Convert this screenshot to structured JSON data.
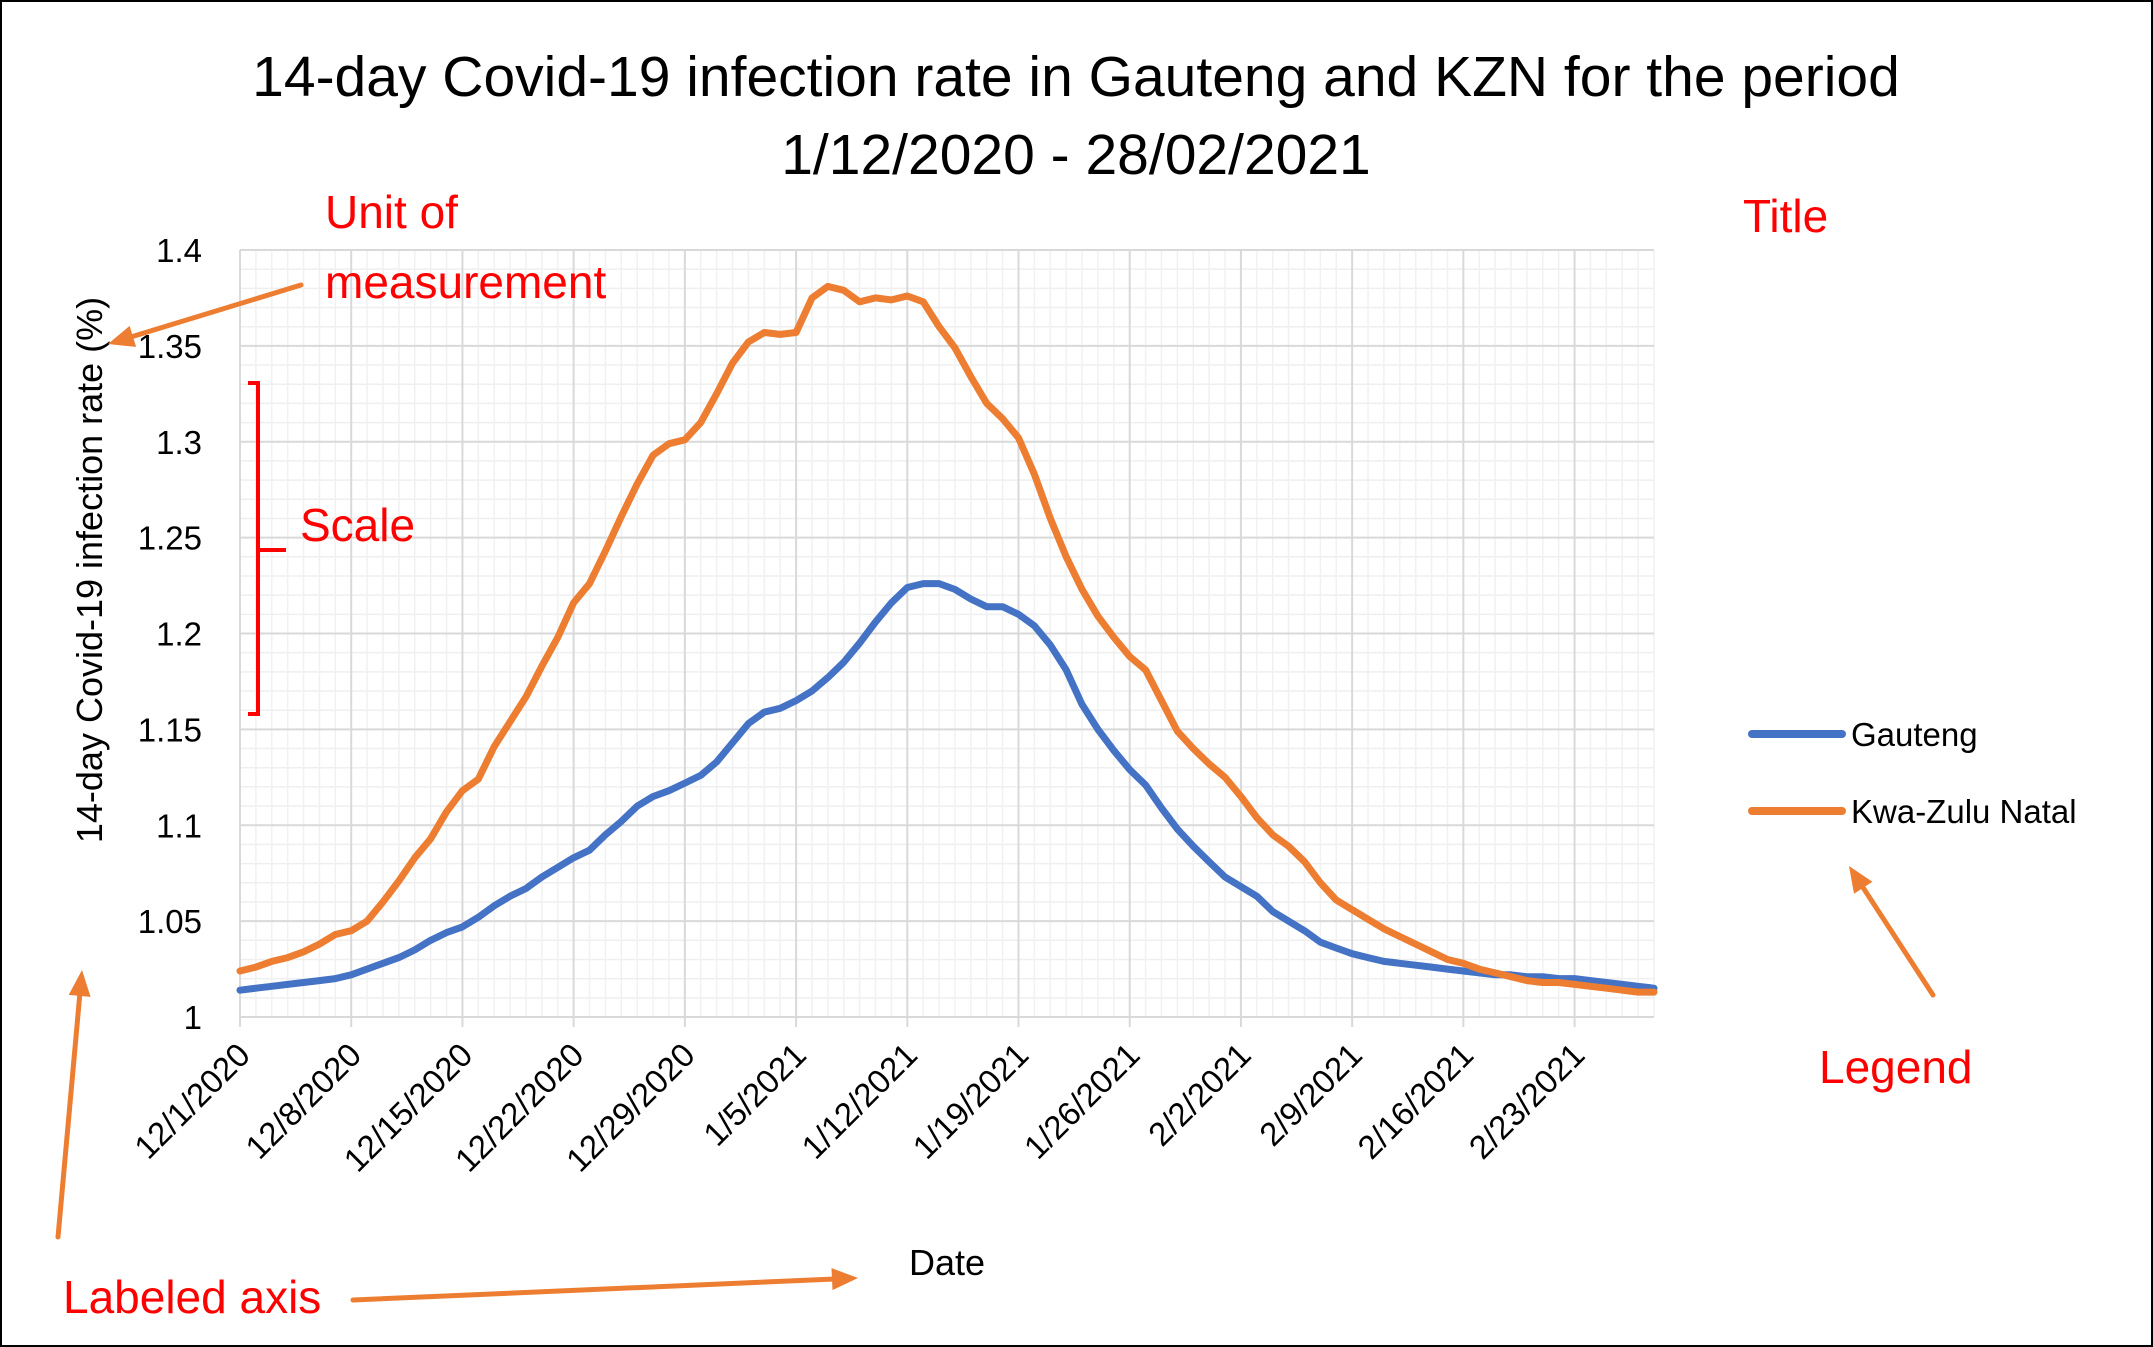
{
  "chart_data": {
    "type": "line",
    "title": "14-day Covid-19 infection rate in Gauteng and KZN for the period 1/12/2020 - 28/02/2021",
    "title_lines": [
      "14-day Covid-19 infection rate in Gauteng and KZN for the period",
      "1/12/2020 - 28/02/2021"
    ],
    "xlabel": "Date",
    "ylabel": "14-day Covid-19 infection rate (%)",
    "ylim": [
      1,
      1.4
    ],
    "yticks": [
      1,
      1.05,
      1.1,
      1.15,
      1.2,
      1.25,
      1.3,
      1.35,
      1.4
    ],
    "ytick_labels": [
      "1",
      "1.05",
      "1.1",
      "1.15",
      "1.2",
      "1.25",
      "1.3",
      "1.35",
      "1.4"
    ],
    "x_start": "2020-12-01",
    "x_end": "2021-02-28",
    "xtick_labels": [
      "12/1/2020",
      "12/8/2020",
      "12/15/2020",
      "12/22/2020",
      "12/29/2020",
      "1/5/2021",
      "1/12/2021",
      "1/19/2021",
      "1/26/2021",
      "2/2/2021",
      "2/9/2021",
      "2/16/2021",
      "2/23/2021"
    ],
    "grid": true,
    "legend_position": "right",
    "series": [
      {
        "name": "Gauteng",
        "color": "#4472C4",
        "points": [
          [
            "2020-12-01",
            1.014
          ],
          [
            "2020-12-02",
            1.015
          ],
          [
            "2020-12-03",
            1.016
          ],
          [
            "2020-12-04",
            1.017
          ],
          [
            "2020-12-05",
            1.018
          ],
          [
            "2020-12-06",
            1.019
          ],
          [
            "2020-12-07",
            1.02
          ],
          [
            "2020-12-08",
            1.022
          ],
          [
            "2020-12-09",
            1.025
          ],
          [
            "2020-12-10",
            1.028
          ],
          [
            "2020-12-11",
            1.031
          ],
          [
            "2020-12-12",
            1.035
          ],
          [
            "2020-12-13",
            1.04
          ],
          [
            "2020-12-14",
            1.044
          ],
          [
            "2020-12-15",
            1.047
          ],
          [
            "2020-12-16",
            1.052
          ],
          [
            "2020-12-17",
            1.058
          ],
          [
            "2020-12-18",
            1.063
          ],
          [
            "2020-12-19",
            1.067
          ],
          [
            "2020-12-20",
            1.073
          ],
          [
            "2020-12-21",
            1.078
          ],
          [
            "2020-12-22",
            1.083
          ],
          [
            "2020-12-23",
            1.087
          ],
          [
            "2020-12-24",
            1.095
          ],
          [
            "2020-12-25",
            1.102
          ],
          [
            "2020-12-26",
            1.11
          ],
          [
            "2020-12-27",
            1.115
          ],
          [
            "2020-12-28",
            1.118
          ],
          [
            "2020-12-29",
            1.122
          ],
          [
            "2020-12-30",
            1.126
          ],
          [
            "2020-12-31",
            1.133
          ],
          [
            "2021-01-01",
            1.143
          ],
          [
            "2021-01-02",
            1.153
          ],
          [
            "2021-01-03",
            1.159
          ],
          [
            "2021-01-04",
            1.161
          ],
          [
            "2021-01-05",
            1.165
          ],
          [
            "2021-01-06",
            1.17
          ],
          [
            "2021-01-07",
            1.177
          ],
          [
            "2021-01-08",
            1.185
          ],
          [
            "2021-01-09",
            1.195
          ],
          [
            "2021-01-10",
            1.206
          ],
          [
            "2021-01-11",
            1.216
          ],
          [
            "2021-01-12",
            1.224
          ],
          [
            "2021-01-13",
            1.226
          ],
          [
            "2021-01-14",
            1.226
          ],
          [
            "2021-01-15",
            1.223
          ],
          [
            "2021-01-16",
            1.218
          ],
          [
            "2021-01-17",
            1.214
          ],
          [
            "2021-01-18",
            1.214
          ],
          [
            "2021-01-19",
            1.21
          ],
          [
            "2021-01-20",
            1.204
          ],
          [
            "2021-01-21",
            1.194
          ],
          [
            "2021-01-22",
            1.181
          ],
          [
            "2021-01-23",
            1.163
          ],
          [
            "2021-01-24",
            1.15
          ],
          [
            "2021-01-25",
            1.139
          ],
          [
            "2021-01-26",
            1.129
          ],
          [
            "2021-01-27",
            1.121
          ],
          [
            "2021-01-28",
            1.109
          ],
          [
            "2021-01-29",
            1.098
          ],
          [
            "2021-01-30",
            1.089
          ],
          [
            "2021-01-31",
            1.081
          ],
          [
            "2021-02-01",
            1.073
          ],
          [
            "2021-02-02",
            1.068
          ],
          [
            "2021-02-03",
            1.063
          ],
          [
            "2021-02-04",
            1.055
          ],
          [
            "2021-02-05",
            1.05
          ],
          [
            "2021-02-06",
            1.045
          ],
          [
            "2021-02-07",
            1.039
          ],
          [
            "2021-02-08",
            1.036
          ],
          [
            "2021-02-09",
            1.033
          ],
          [
            "2021-02-10",
            1.031
          ],
          [
            "2021-02-11",
            1.029
          ],
          [
            "2021-02-12",
            1.028
          ],
          [
            "2021-02-13",
            1.027
          ],
          [
            "2021-02-14",
            1.026
          ],
          [
            "2021-02-15",
            1.025
          ],
          [
            "2021-02-16",
            1.024
          ],
          [
            "2021-02-17",
            1.023
          ],
          [
            "2021-02-18",
            1.022
          ],
          [
            "2021-02-19",
            1.022
          ],
          [
            "2021-02-20",
            1.021
          ],
          [
            "2021-02-21",
            1.021
          ],
          [
            "2021-02-22",
            1.02
          ],
          [
            "2021-02-23",
            1.02
          ],
          [
            "2021-02-24",
            1.019
          ],
          [
            "2021-02-25",
            1.018
          ],
          [
            "2021-02-26",
            1.017
          ],
          [
            "2021-02-27",
            1.016
          ],
          [
            "2021-02-28",
            1.015
          ]
        ]
      },
      {
        "name": "Kwa-Zulu Natal",
        "color": "#ED7D31",
        "points": [
          [
            "2020-12-01",
            1.024
          ],
          [
            "2020-12-02",
            1.026
          ],
          [
            "2020-12-03",
            1.029
          ],
          [
            "2020-12-04",
            1.031
          ],
          [
            "2020-12-05",
            1.034
          ],
          [
            "2020-12-06",
            1.038
          ],
          [
            "2020-12-07",
            1.043
          ],
          [
            "2020-12-08",
            1.045
          ],
          [
            "2020-12-09",
            1.05
          ],
          [
            "2020-12-10",
            1.06
          ],
          [
            "2020-12-11",
            1.071
          ],
          [
            "2020-12-12",
            1.083
          ],
          [
            "2020-12-13",
            1.093
          ],
          [
            "2020-12-14",
            1.107
          ],
          [
            "2020-12-15",
            1.118
          ],
          [
            "2020-12-16",
            1.124
          ],
          [
            "2020-12-17",
            1.141
          ],
          [
            "2020-12-18",
            1.154
          ],
          [
            "2020-12-19",
            1.167
          ],
          [
            "2020-12-20",
            1.183
          ],
          [
            "2020-12-21",
            1.198
          ],
          [
            "2020-12-22",
            1.216
          ],
          [
            "2020-12-23",
            1.226
          ],
          [
            "2020-12-24",
            1.243
          ],
          [
            "2020-12-25",
            1.261
          ],
          [
            "2020-12-26",
            1.278
          ],
          [
            "2020-12-27",
            1.293
          ],
          [
            "2020-12-28",
            1.299
          ],
          [
            "2020-12-29",
            1.301
          ],
          [
            "2020-12-30",
            1.31
          ],
          [
            "2020-12-31",
            1.325
          ],
          [
            "2021-01-01",
            1.341
          ],
          [
            "2021-01-02",
            1.352
          ],
          [
            "2021-01-03",
            1.357
          ],
          [
            "2021-01-04",
            1.356
          ],
          [
            "2021-01-05",
            1.357
          ],
          [
            "2021-01-06",
            1.375
          ],
          [
            "2021-01-07",
            1.381
          ],
          [
            "2021-01-08",
            1.379
          ],
          [
            "2021-01-09",
            1.373
          ],
          [
            "2021-01-10",
            1.375
          ],
          [
            "2021-01-11",
            1.374
          ],
          [
            "2021-01-12",
            1.376
          ],
          [
            "2021-01-13",
            1.373
          ],
          [
            "2021-01-14",
            1.36
          ],
          [
            "2021-01-15",
            1.349
          ],
          [
            "2021-01-16",
            1.334
          ],
          [
            "2021-01-17",
            1.32
          ],
          [
            "2021-01-18",
            1.312
          ],
          [
            "2021-01-19",
            1.302
          ],
          [
            "2021-01-20",
            1.283
          ],
          [
            "2021-01-21",
            1.26
          ],
          [
            "2021-01-22",
            1.24
          ],
          [
            "2021-01-23",
            1.223
          ],
          [
            "2021-01-24",
            1.209
          ],
          [
            "2021-01-25",
            1.198
          ],
          [
            "2021-01-26",
            1.188
          ],
          [
            "2021-01-27",
            1.181
          ],
          [
            "2021-01-28",
            1.165
          ],
          [
            "2021-01-29",
            1.149
          ],
          [
            "2021-01-30",
            1.14
          ],
          [
            "2021-01-31",
            1.132
          ],
          [
            "2021-02-01",
            1.125
          ],
          [
            "2021-02-02",
            1.115
          ],
          [
            "2021-02-03",
            1.104
          ],
          [
            "2021-02-04",
            1.095
          ],
          [
            "2021-02-05",
            1.089
          ],
          [
            "2021-02-06",
            1.081
          ],
          [
            "2021-02-07",
            1.07
          ],
          [
            "2021-02-08",
            1.061
          ],
          [
            "2021-02-09",
            1.056
          ],
          [
            "2021-02-10",
            1.051
          ],
          [
            "2021-02-11",
            1.046
          ],
          [
            "2021-02-12",
            1.042
          ],
          [
            "2021-02-13",
            1.038
          ],
          [
            "2021-02-14",
            1.034
          ],
          [
            "2021-02-15",
            1.03
          ],
          [
            "2021-02-16",
            1.028
          ],
          [
            "2021-02-17",
            1.025
          ],
          [
            "2021-02-18",
            1.023
          ],
          [
            "2021-02-19",
            1.021
          ],
          [
            "2021-02-20",
            1.019
          ],
          [
            "2021-02-21",
            1.018
          ],
          [
            "2021-02-22",
            1.018
          ],
          [
            "2021-02-23",
            1.017
          ],
          [
            "2021-02-24",
            1.016
          ],
          [
            "2021-02-25",
            1.015
          ],
          [
            "2021-02-26",
            1.014
          ],
          [
            "2021-02-27",
            1.013
          ],
          [
            "2021-02-28",
            1.013
          ]
        ]
      }
    ]
  },
  "annotations": {
    "text_color": "#FF0000",
    "arrow_color": "#ED7D31",
    "bracket_color": "#FF0000",
    "unit_of_measurement_lines": [
      "Unit of",
      "measurement"
    ],
    "title": "Title",
    "scale": "Scale",
    "legend": "Legend",
    "labeled_axis": "Labeled axis"
  }
}
